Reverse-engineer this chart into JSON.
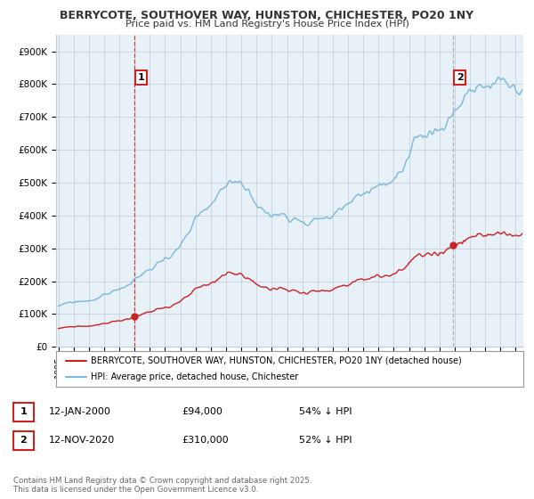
{
  "title1": "BERRYCOTE, SOUTHOVER WAY, HUNSTON, CHICHESTER, PO20 1NY",
  "title2": "Price paid vs. HM Land Registry's House Price Index (HPI)",
  "ylim": [
    0,
    950000
  ],
  "yticks": [
    0,
    100000,
    200000,
    300000,
    400000,
    500000,
    600000,
    700000,
    800000,
    900000
  ],
  "ytick_labels": [
    "£0",
    "£100K",
    "£200K",
    "£300K",
    "£400K",
    "£500K",
    "£600K",
    "£700K",
    "£800K",
    "£900K"
  ],
  "hpi_color": "#7ab8d9",
  "price_color": "#cc2222",
  "vline_color": "#cc2222",
  "vline2_color": "#aaaaaa",
  "plot_bg_color": "#e8f0f8",
  "legend_price_label": "BERRYCOTE, SOUTHOVER WAY, HUNSTON, CHICHESTER, PO20 1NY (detached house)",
  "legend_hpi_label": "HPI: Average price, detached house, Chichester",
  "table_row1": [
    "1",
    "12-JAN-2000",
    "£94,000",
    "54% ↓ HPI"
  ],
  "table_row2": [
    "2",
    "12-NOV-2020",
    "£310,000",
    "52% ↓ HPI"
  ],
  "footnote": "Contains HM Land Registry data © Crown copyright and database right 2025.\nThis data is licensed under the Open Government Licence v3.0.",
  "background_color": "#ffffff",
  "grid_color": "#c0ccd8"
}
